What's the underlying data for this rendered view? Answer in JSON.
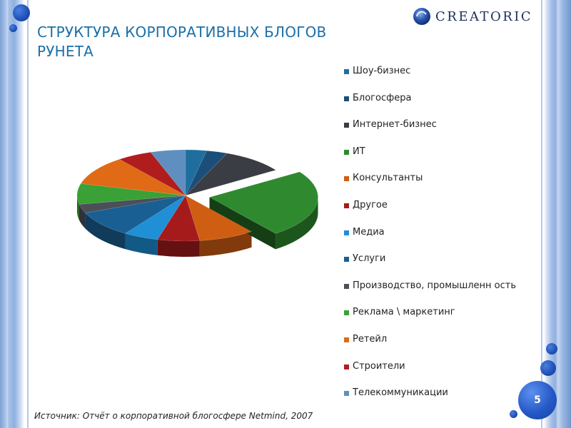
{
  "slide": {
    "title": "СТРУКТУРА КОРПОРАТИВНЫХ БЛОГОВ РУНЕТА",
    "logo_text": "CREATORIC",
    "source": "Источник: Отчёт о корпоративной блогосфере Netmind, 2007",
    "page_number": "5"
  },
  "chart_data": {
    "type": "pie",
    "categories": [
      "Шоу-бизнес",
      "Блогосфера",
      "Интернет-бизнес",
      "ИТ",
      "Консультанты",
      "Другое",
      "Медиа",
      "Услуги",
      "Производство, промышленность",
      "Реклама \\ маркетинг",
      "Ретейл",
      "Строители",
      "Телекоммуникации"
    ],
    "values": [
      3,
      3,
      9,
      23,
      8,
      6,
      5,
      9,
      3,
      7,
      10,
      5,
      5
    ],
    "units": "%",
    "exploded_slice": "ИТ",
    "colors": [
      "#1f6f9e",
      "#1b4f7a",
      "#3a3d44",
      "#2f8a2f",
      "#d05e12",
      "#a51b1b",
      "#1f8fd6",
      "#1a5f93",
      "#4a4f58",
      "#39a136",
      "#e06a15",
      "#b01d1d",
      "#5f8fc0"
    ],
    "legend_position": "right",
    "title": ""
  },
  "legend": {
    "labels": [
      "Шоу-бизнес",
      "Блогосфера",
      "Интернет-бизнес",
      "ИТ",
      "Консультанты",
      "Другое",
      "Медиа",
      "Услуги",
      "Производство, промышленн ость",
      "Реклама \\ маркетинг",
      "Ретейл",
      "Строители",
      "Телекоммуникации"
    ]
  }
}
